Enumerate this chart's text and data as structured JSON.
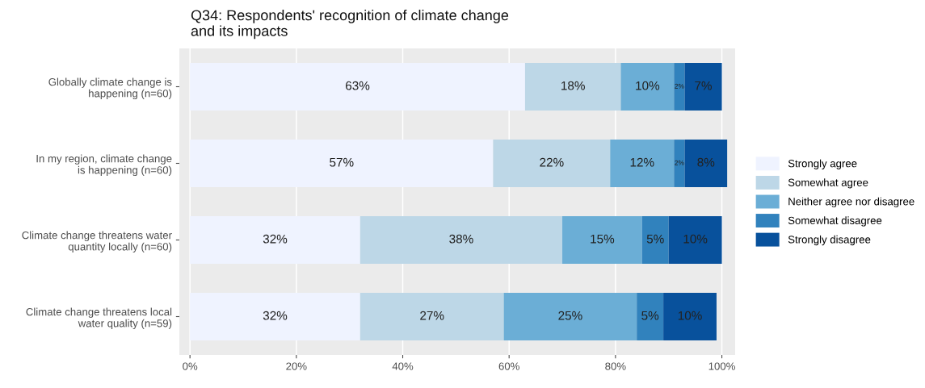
{
  "chart_data": {
    "type": "bar",
    "orientation": "horizontal",
    "stacked": true,
    "title": "Q34: Respondents' recognition of climate change\nand its impacts",
    "categories": [
      "Globally climate change is\nhappening (n=60)",
      "In my region, climate change\nis happening (n=60)",
      "Climate change threatens water\nquantity locally (n=60)",
      "Climate change threatens local\nwater quality (n=59)"
    ],
    "series": [
      {
        "name": "Strongly agree",
        "color": "#eff3ff",
        "values": [
          63,
          57,
          32,
          32
        ],
        "value_labels": [
          "63%",
          "57%",
          "32%",
          "32%"
        ]
      },
      {
        "name": "Somewhat agree",
        "color": "#bdd7e7",
        "values": [
          18,
          22,
          38,
          27
        ],
        "value_labels": [
          "18%",
          "22%",
          "38%",
          "27%"
        ]
      },
      {
        "name": "Neither agree nor disagree",
        "color": "#6baed6",
        "values": [
          10,
          12,
          15,
          25
        ],
        "value_labels": [
          "10%",
          "12%",
          "15%",
          "25%"
        ]
      },
      {
        "name": "Somewhat disagree",
        "color": "#3182bd",
        "values": [
          2,
          2,
          5,
          5
        ],
        "value_labels": [
          "2%",
          "2%",
          "5%",
          "5%"
        ]
      },
      {
        "name": "Strongly disagree",
        "color": "#08519c",
        "values": [
          7,
          8,
          10,
          10
        ],
        "value_labels": [
          "7%",
          "8%",
          "10%",
          "10%"
        ]
      }
    ],
    "xlim": [
      -2,
      102.5
    ],
    "xticks": [
      {
        "value": 0,
        "label": "0%"
      },
      {
        "value": 20,
        "label": "20%"
      },
      {
        "value": 40,
        "label": "40%"
      },
      {
        "value": 60,
        "label": "60%"
      },
      {
        "value": 80,
        "label": "80%"
      },
      {
        "value": 100,
        "label": "100%"
      }
    ],
    "grid": "x",
    "legend": "right"
  }
}
